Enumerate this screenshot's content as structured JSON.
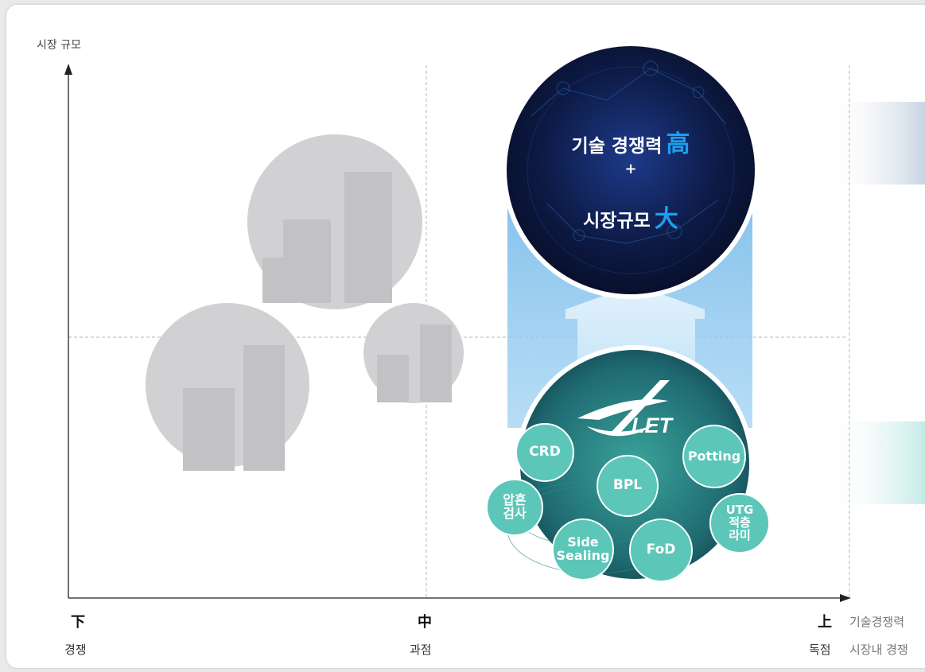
{
  "axes": {
    "y_label": "시장 규모",
    "x_ticks": [
      {
        "main": "下",
        "sub": "경쟁"
      },
      {
        "main": "中",
        "sub": "과점"
      },
      {
        "main": "上",
        "sub": "독점"
      }
    ],
    "x_label_1": "기술경쟁력",
    "x_label_2": "시장내 경쟁"
  },
  "highlight": {
    "line1": "기술 경쟁력",
    "line1_mark": "高",
    "plus": "+",
    "line2": "시장규모",
    "line2_mark": "大"
  },
  "logo": {
    "text": "LET"
  },
  "products": [
    {
      "key": "crd",
      "label": "CRD"
    },
    {
      "key": "bpl",
      "label": "BPL"
    },
    {
      "key": "potting",
      "label": "Potting"
    },
    {
      "key": "ap",
      "label": "압흔\n검사"
    },
    {
      "key": "side",
      "label": "Side\nSealing"
    },
    {
      "key": "fod",
      "label": "FoD"
    },
    {
      "key": "utg",
      "label": "UTG\n적층\n라미"
    }
  ],
  "colors": {
    "accent_blue": "#1aa0f0",
    "teal": "#5cc6b8",
    "gray_bubble": "#d1d1d3",
    "dark_navy": "#0d1a45"
  }
}
